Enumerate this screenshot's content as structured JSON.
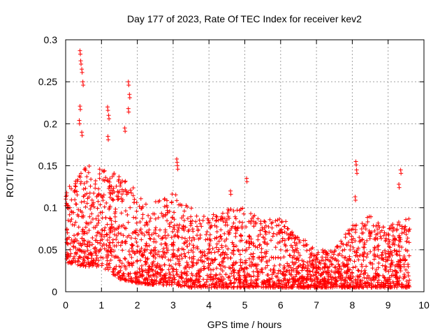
{
  "chart_data": {
    "type": "scatter",
    "title": "Day 177 of 2023, Rate Of TEC Index for receiver kev2",
    "xlabel": "GPS time / hours",
    "ylabel": "ROTI / TECUs",
    "xlim": [
      0,
      10
    ],
    "ylim": [
      0,
      0.3
    ],
    "x_ticks": [
      0,
      1,
      2,
      3,
      4,
      5,
      6,
      7,
      8,
      9,
      10
    ],
    "x_tick_labels": [
      "0",
      "1",
      "2",
      "3",
      "4",
      "5",
      "6",
      "7",
      "8",
      "9",
      "10"
    ],
    "y_ticks": [
      0,
      0.05,
      0.1,
      0.15,
      0.2,
      0.25,
      0.3
    ],
    "y_tick_labels": [
      "0",
      "0.05",
      "0.1",
      "0.15",
      "0.2",
      "0.25",
      "0.3"
    ],
    "grid": true,
    "marker": "+",
    "color": "#ff0000",
    "series": [
      {
        "name": "ROTI",
        "x_range": [
          0,
          9.6
        ],
        "notable_points": [
          {
            "x": 0.4,
            "y": 0.287
          },
          {
            "x": 0.42,
            "y": 0.275
          },
          {
            "x": 0.45,
            "y": 0.265
          },
          {
            "x": 0.48,
            "y": 0.25
          },
          {
            "x": 0.4,
            "y": 0.221
          },
          {
            "x": 0.38,
            "y": 0.204
          },
          {
            "x": 0.45,
            "y": 0.19
          },
          {
            "x": 1.17,
            "y": 0.22
          },
          {
            "x": 1.2,
            "y": 0.21
          },
          {
            "x": 1.18,
            "y": 0.185
          },
          {
            "x": 1.75,
            "y": 0.25
          },
          {
            "x": 1.78,
            "y": 0.235
          },
          {
            "x": 1.75,
            "y": 0.218
          },
          {
            "x": 1.65,
            "y": 0.195
          },
          {
            "x": 3.1,
            "y": 0.158
          },
          {
            "x": 3.12,
            "y": 0.15
          },
          {
            "x": 4.6,
            "y": 0.12
          },
          {
            "x": 5.05,
            "y": 0.135
          },
          {
            "x": 8.1,
            "y": 0.155
          },
          {
            "x": 8.12,
            "y": 0.145
          },
          {
            "x": 8.08,
            "y": 0.113
          },
          {
            "x": 9.35,
            "y": 0.145
          },
          {
            "x": 9.3,
            "y": 0.128
          }
        ],
        "envelope": [
          {
            "x": 0.0,
            "y_low": 0.035,
            "y_high": 0.12
          },
          {
            "x": 0.5,
            "y_low": 0.03,
            "y_high": 0.15
          },
          {
            "x": 1.0,
            "y_low": 0.03,
            "y_high": 0.15
          },
          {
            "x": 1.5,
            "y_low": 0.015,
            "y_high": 0.14
          },
          {
            "x": 2.0,
            "y_low": 0.01,
            "y_high": 0.12
          },
          {
            "x": 2.5,
            "y_low": 0.008,
            "y_high": 0.11
          },
          {
            "x": 3.0,
            "y_low": 0.008,
            "y_high": 0.12
          },
          {
            "x": 3.5,
            "y_low": 0.005,
            "y_high": 0.1
          },
          {
            "x": 4.0,
            "y_low": 0.005,
            "y_high": 0.09
          },
          {
            "x": 4.5,
            "y_low": 0.005,
            "y_high": 0.1
          },
          {
            "x": 5.0,
            "y_low": 0.005,
            "y_high": 0.1
          },
          {
            "x": 5.5,
            "y_low": 0.005,
            "y_high": 0.09
          },
          {
            "x": 6.0,
            "y_low": 0.005,
            "y_high": 0.09
          },
          {
            "x": 6.5,
            "y_low": 0.005,
            "y_high": 0.07
          },
          {
            "x": 7.0,
            "y_low": 0.005,
            "y_high": 0.05
          },
          {
            "x": 7.5,
            "y_low": 0.005,
            "y_high": 0.05
          },
          {
            "x": 8.0,
            "y_low": 0.005,
            "y_high": 0.08
          },
          {
            "x": 8.5,
            "y_low": 0.005,
            "y_high": 0.09
          },
          {
            "x": 9.0,
            "y_low": 0.005,
            "y_high": 0.08
          },
          {
            "x": 9.6,
            "y_low": 0.005,
            "y_high": 0.09
          }
        ]
      }
    ]
  }
}
